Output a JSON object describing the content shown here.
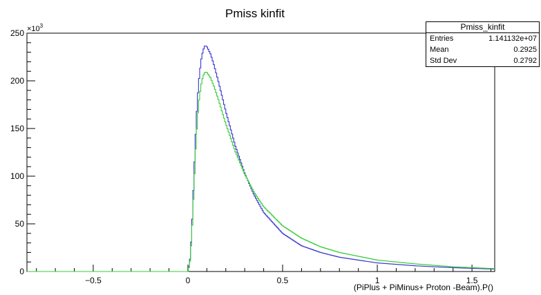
{
  "chart_data": {
    "type": "line",
    "title": "Pmiss kinfit",
    "xlabel": "(PiPlus + PiMinus+ Proton -Beam).P()",
    "ylabel": "",
    "y_exponent_label": "×10",
    "y_exponent_sup": "3",
    "xlim": [
      -0.85,
      1.62
    ],
    "ylim": [
      0,
      250
    ],
    "x_ticks": [
      -0.5,
      0,
      0.5,
      1,
      1.5
    ],
    "x_tick_labels": [
      "−0.5",
      "0",
      "0.5",
      "1",
      "1.5"
    ],
    "y_ticks": [
      0,
      50,
      100,
      150,
      200,
      250
    ],
    "y_tick_labels": [
      "0",
      "50",
      "100",
      "150",
      "200",
      "250"
    ],
    "grid": false,
    "series": [
      {
        "color": "#3434cc",
        "x": [
          -0.85,
          0.0,
          0.01,
          0.02,
          0.03,
          0.04,
          0.05,
          0.06,
          0.07,
          0.08,
          0.09,
          0.1,
          0.12,
          0.14,
          0.16,
          0.18,
          0.2,
          0.25,
          0.3,
          0.35,
          0.4,
          0.5,
          0.6,
          0.7,
          0.8,
          1.0,
          1.2,
          1.4,
          1.62
        ],
        "y": [
          0,
          0,
          10,
          40,
          90,
          140,
          180,
          205,
          222,
          232,
          237,
          236,
          228,
          215,
          200,
          184,
          168,
          132,
          103,
          80,
          62,
          40,
          27,
          20,
          15,
          9,
          6,
          4,
          2.5
        ]
      },
      {
        "color": "#33cc33",
        "x": [
          -0.85,
          0.0,
          0.01,
          0.02,
          0.03,
          0.04,
          0.05,
          0.06,
          0.07,
          0.08,
          0.09,
          0.1,
          0.12,
          0.14,
          0.16,
          0.18,
          0.2,
          0.25,
          0.3,
          0.35,
          0.4,
          0.5,
          0.6,
          0.7,
          0.8,
          1.0,
          1.2,
          1.4,
          1.62
        ],
        "y": [
          0,
          0,
          8,
          35,
          80,
          125,
          160,
          182,
          196,
          205,
          209,
          209,
          203,
          193,
          181,
          168,
          155,
          126,
          102,
          83,
          68,
          48,
          35,
          26,
          20,
          12,
          8,
          5,
          3
        ]
      }
    ]
  },
  "stats": {
    "title": "Pmiss_kinfit",
    "rows": [
      {
        "label": "Entries",
        "value": "1.141132e+07"
      },
      {
        "label": "Mean",
        "value": "0.2925"
      },
      {
        "label": "Std Dev",
        "value": "0.2792"
      }
    ]
  }
}
